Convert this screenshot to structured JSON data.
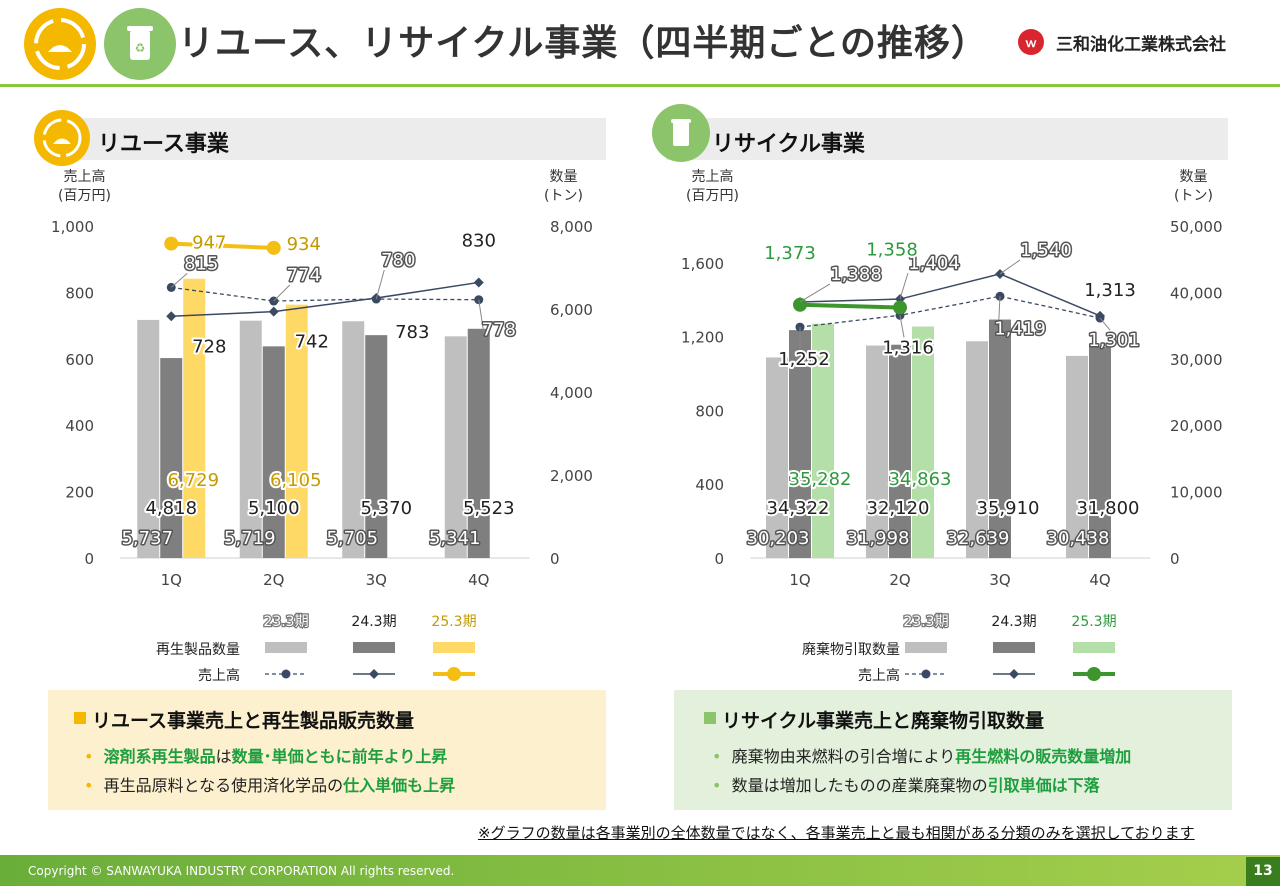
{
  "header": {
    "title": "リユース、リサイクル事業（四半期ごとの推移）",
    "company": "三和油化工業株式会社"
  },
  "reuse": {
    "section_title": "リユース事業",
    "unit_left": [
      "売上高",
      "(百万円)"
    ],
    "unit_right": [
      "数量",
      "(トン)"
    ],
    "legend": {
      "periods": [
        "23.3期",
        "24.3期",
        "25.3期"
      ],
      "row1_label": "再生製品数量",
      "row2_label": "売上高"
    },
    "info": {
      "heading": "リユース事業売上と再生製品販売数量",
      "b1_bold": "溶剤系再生製品",
      "b1_mid": "は",
      "b1_bold2": "数量･単価ともに前年より上昇",
      "b2_text": "再生品原料となる使用済化学品の",
      "b2_bold": "仕入単価も上昇"
    }
  },
  "recycle": {
    "section_title": "リサイクル事業",
    "unit_left": [
      "売上高",
      "(百万円)"
    ],
    "unit_right": [
      "数量",
      "(トン)"
    ],
    "legend": {
      "periods": [
        "23.3期",
        "24.3期",
        "25.3期"
      ],
      "row1_label": "廃棄物引取数量",
      "row2_label": "売上高"
    },
    "info": {
      "heading": "リサイクル事業売上と廃棄物引取数量",
      "b1_text": "廃棄物由来燃料の引合増により",
      "b1_bold": "再生燃料の販売数量増加",
      "b2_text": "数量は増加したものの産業廃棄物の",
      "b2_bold": "引取単価は下落"
    }
  },
  "note": "※グラフの数量は各事業別の全体数量ではなく、各事業売上と最も相関がある分類のみを選択しております",
  "footer": {
    "copyright": "Copyright © SANWAYUKA INDUSTRY CORPORATION All rights reserved.",
    "page": "13"
  },
  "colors": {
    "bar_23": "#bfbfbf",
    "bar_24": "#7f7f7f",
    "bar_25_reuse": "#ffd966",
    "bar_25_recycle": "#b5dfa8",
    "line_dark": "#3b4a63",
    "line_25_reuse": "#f5be14",
    "line_25_recycle": "#3c962d",
    "label_25_reuse": "#c59a00",
    "label_25_recycle": "#2e9a3e",
    "accent_green": "#1e9e3e"
  },
  "chart_data": [
    {
      "type": "bar",
      "name": "reuse",
      "categories": [
        "1Q",
        "2Q",
        "3Q",
        "4Q"
      ],
      "ylim": [
        0,
        1000
      ],
      "y_ticks": [
        "0",
        "200",
        "400",
        "600",
        "800",
        "1,000"
      ],
      "y2lim": [
        0,
        8000
      ],
      "y2_ticks": [
        "0",
        "2,000",
        "4,000",
        "6,000",
        "8,000"
      ],
      "bars_y2": [
        {
          "name": "23.3期",
          "values": [
            5737,
            5719,
            5705,
            5341
          ],
          "labels": [
            "5,737",
            "5,719",
            "5,705",
            "5,341"
          ]
        },
        {
          "name": "24.3期",
          "values": [
            4818,
            5100,
            5370,
            5523
          ],
          "labels": [
            "4,818",
            "5,100",
            "5,370",
            "5,523"
          ]
        },
        {
          "name": "25.3期",
          "values": [
            6729,
            6105,
            null,
            null
          ],
          "labels": [
            "6,729",
            "6,105",
            "",
            ""
          ]
        }
      ],
      "lines_y1": [
        {
          "name": "23.3期",
          "values": [
            815,
            774,
            780,
            778
          ],
          "labels": [
            "815",
            "774",
            "780",
            "778"
          ]
        },
        {
          "name": "24.3期",
          "values": [
            728,
            742,
            783,
            830
          ],
          "labels": [
            "728",
            "742",
            "783",
            "830"
          ]
        },
        {
          "name": "25.3期",
          "values": [
            947,
            934,
            null,
            null
          ],
          "labels": [
            "947",
            "934",
            "",
            ""
          ]
        }
      ]
    },
    {
      "type": "bar",
      "name": "recycle",
      "categories": [
        "1Q",
        "2Q",
        "3Q",
        "4Q"
      ],
      "ylim": [
        0,
        1800
      ],
      "y_ticks": [
        "0",
        "400",
        "800",
        "1,200",
        "1,600"
      ],
      "y_tick_values": [
        0,
        400,
        800,
        1200,
        1600
      ],
      "y2lim": [
        0,
        50000
      ],
      "y2_ticks": [
        "0",
        "10,000",
        "20,000",
        "30,000",
        "40,000",
        "50,000"
      ],
      "bars_y2": [
        {
          "name": "23.3期",
          "values": [
            30203,
            31998,
            32639,
            30438
          ],
          "labels": [
            "30,203",
            "31,998",
            "32,639",
            "30,438"
          ]
        },
        {
          "name": "24.3期",
          "values": [
            34322,
            32120,
            35910,
            31800
          ],
          "labels": [
            "34,322",
            "32,120",
            "35,910",
            "31,800"
          ]
        },
        {
          "name": "25.3期",
          "values": [
            35282,
            34863,
            null,
            null
          ],
          "labels": [
            "35,282",
            "34,863",
            "",
            ""
          ]
        }
      ],
      "lines_y1": [
        {
          "name": "23.3期",
          "values": [
            1252,
            1316,
            1419,
            1301
          ],
          "labels": [
            "1,252",
            "1,316",
            "1,419",
            "1,301"
          ]
        },
        {
          "name": "24.3期",
          "values": [
            1388,
            1404,
            1540,
            1313
          ],
          "labels": [
            "1,388",
            "1,404",
            "1,540",
            "1,313"
          ]
        },
        {
          "name": "25.3期",
          "values": [
            1373,
            1358,
            null,
            null
          ],
          "labels": [
            "1,373",
            "1,358",
            "",
            ""
          ]
        }
      ]
    }
  ]
}
